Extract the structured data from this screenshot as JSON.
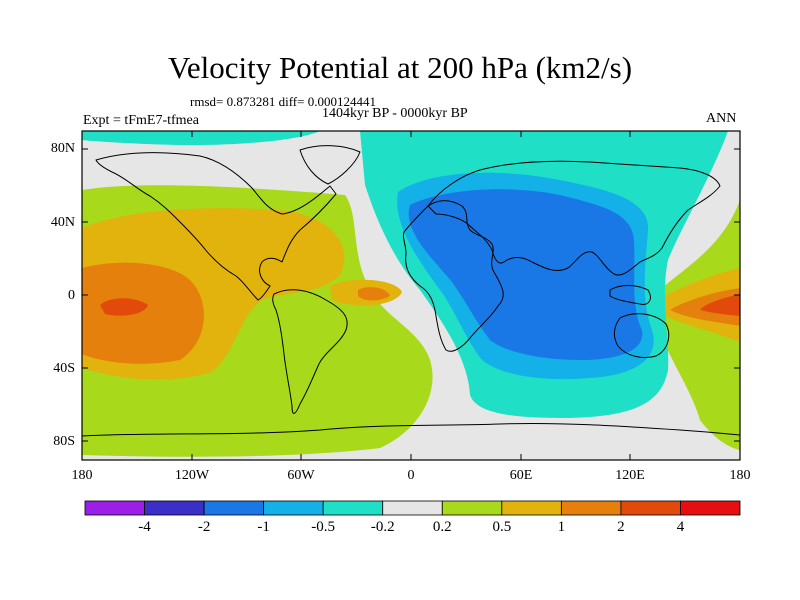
{
  "title": "Velocity Potential at 200 hPa (km2/s)",
  "stats": "rmsd= 0.873281 diff= 0.000124441",
  "period": "1404kyr BP - 0000kyr BP",
  "experiment": "Expt = tFmE7-tfmea",
  "season": "ANN",
  "lat_labels": [
    "80N",
    "40N",
    "0",
    "40S",
    "80S"
  ],
  "lon_labels": [
    "180",
    "120W",
    "60W",
    "0",
    "60E",
    "120E",
    "180"
  ],
  "colorbar": {
    "labels": [
      "-4",
      "-2",
      "-1",
      "-0.5",
      "-0.2",
      "0.2",
      "0.5",
      "1",
      "2",
      "4"
    ],
    "colors": [
      "#9b1fe8",
      "#3c2fc8",
      "#1a78e6",
      "#13b1e8",
      "#1fe0c6",
      "#e6e6e6",
      "#a8d91a",
      "#e2b30c",
      "#e6800c",
      "#e24a0c",
      "#e60e0e"
    ]
  },
  "field_colors": {
    "neg_strong": "#1a78e6",
    "neg_moderate": "#13b1e8",
    "neg_weak": "#1fe0c6",
    "neutral": "#e6e6e6",
    "pos_weak": "#a8d91a",
    "pos_moderate": "#e2b30c",
    "pos_strong": "#e6800c",
    "pos_max": "#e24a0c"
  }
}
